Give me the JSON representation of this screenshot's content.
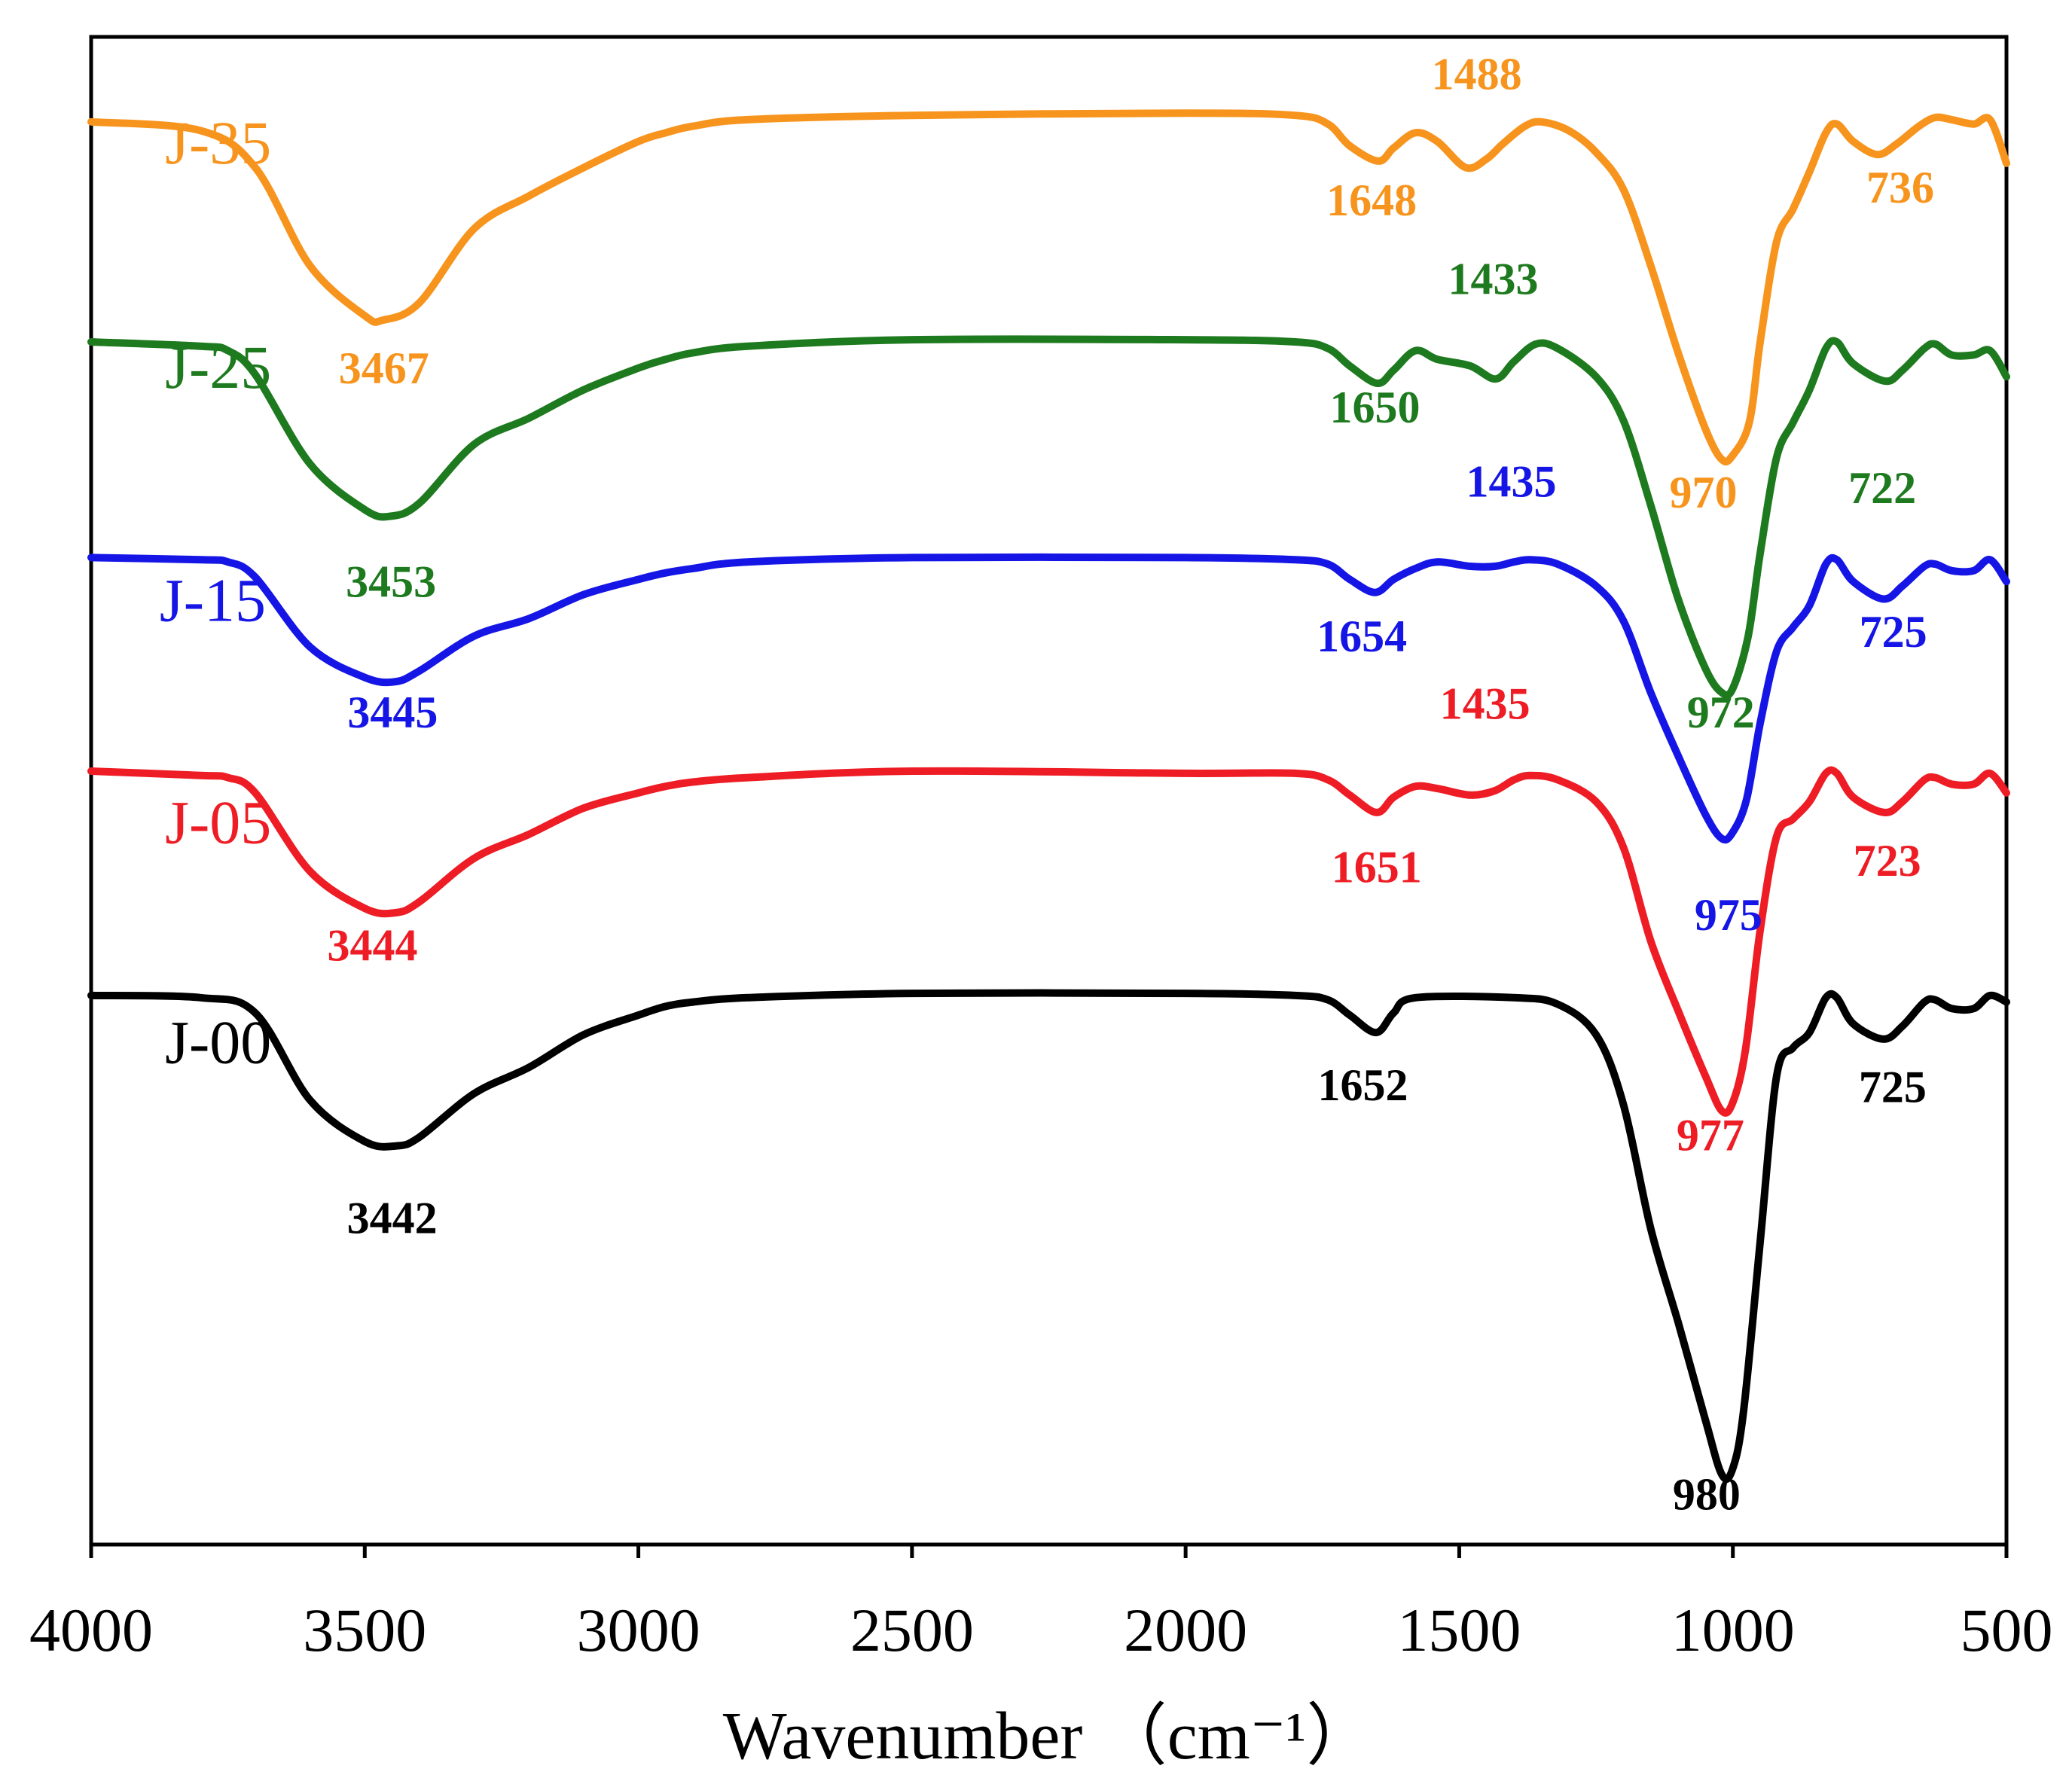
{
  "chart_data": {
    "type": "line",
    "title": "",
    "xlabel": "Wavenumber （cm⁻¹）",
    "ylabel": "",
    "xlim": [
      4000,
      500
    ],
    "x_ticks": [
      {
        "value": 4000,
        "label": "4000"
      },
      {
        "value": 3500,
        "label": "3500"
      },
      {
        "value": 3000,
        "label": "3000"
      },
      {
        "value": 2500,
        "label": "2500"
      },
      {
        "value": 2000,
        "label": "2000"
      },
      {
        "value": 1500,
        "label": "1500"
      },
      {
        "value": 1000,
        "label": "1000"
      },
      {
        "value": 500,
        "label": "500"
      }
    ],
    "y_axis_ticks": "none",
    "grid": false,
    "legend": "series names printed beside each curve on the left",
    "series": [
      {
        "name": "J-35",
        "color": "#f7941d",
        "points": [
          [
            4000,
            4.81
          ],
          [
            3800,
            4.77
          ],
          [
            3700,
            4.6
          ],
          [
            3600,
            4.15
          ],
          [
            3500,
            3.92
          ],
          [
            3467,
            3.9
          ],
          [
            3400,
            3.98
          ],
          [
            3300,
            4.32
          ],
          [
            3200,
            4.47
          ],
          [
            3100,
            4.6
          ],
          [
            3000,
            4.72
          ],
          [
            2950,
            4.76
          ],
          [
            2900,
            4.79
          ],
          [
            2800,
            4.82
          ],
          [
            2500,
            4.84
          ],
          [
            2000,
            4.85
          ],
          [
            1800,
            4.84
          ],
          [
            1740,
            4.8
          ],
          [
            1700,
            4.7
          ],
          [
            1648,
            4.63
          ],
          [
            1620,
            4.69
          ],
          [
            1580,
            4.76
          ],
          [
            1540,
            4.72
          ],
          [
            1488,
            4.6
          ],
          [
            1450,
            4.64
          ],
          [
            1420,
            4.71
          ],
          [
            1380,
            4.79
          ],
          [
            1350,
            4.81
          ],
          [
            1300,
            4.77
          ],
          [
            1250,
            4.67
          ],
          [
            1200,
            4.5
          ],
          [
            1150,
            4.15
          ],
          [
            1100,
            3.75
          ],
          [
            1050,
            3.4
          ],
          [
            1020,
            3.26
          ],
          [
            1000,
            3.28
          ],
          [
            970,
            3.43
          ],
          [
            950,
            3.8
          ],
          [
            920,
            4.26
          ],
          [
            890,
            4.41
          ],
          [
            860,
            4.58
          ],
          [
            830,
            4.76
          ],
          [
            810,
            4.8
          ],
          [
            780,
            4.72
          ],
          [
            736,
            4.66
          ],
          [
            700,
            4.71
          ],
          [
            660,
            4.79
          ],
          [
            630,
            4.83
          ],
          [
            600,
            4.82
          ],
          [
            560,
            4.8
          ],
          [
            530,
            4.82
          ],
          [
            500,
            4.62
          ]
        ]
      },
      {
        "name": "J-25",
        "color": "#1e7a1e",
        "points": [
          [
            4000,
            3.8
          ],
          [
            3800,
            3.78
          ],
          [
            3750,
            3.76
          ],
          [
            3700,
            3.65
          ],
          [
            3600,
            3.24
          ],
          [
            3500,
            3.03
          ],
          [
            3453,
            3.0
          ],
          [
            3400,
            3.06
          ],
          [
            3300,
            3.33
          ],
          [
            3200,
            3.45
          ],
          [
            3100,
            3.58
          ],
          [
            3000,
            3.68
          ],
          [
            2950,
            3.72
          ],
          [
            2900,
            3.75
          ],
          [
            2800,
            3.78
          ],
          [
            2500,
            3.81
          ],
          [
            2000,
            3.81
          ],
          [
            1800,
            3.8
          ],
          [
            1740,
            3.77
          ],
          [
            1700,
            3.69
          ],
          [
            1650,
            3.61
          ],
          [
            1620,
            3.67
          ],
          [
            1580,
            3.76
          ],
          [
            1540,
            3.72
          ],
          [
            1480,
            3.69
          ],
          [
            1433,
            3.63
          ],
          [
            1400,
            3.71
          ],
          [
            1360,
            3.79
          ],
          [
            1320,
            3.77
          ],
          [
            1250,
            3.64
          ],
          [
            1200,
            3.44
          ],
          [
            1150,
            3.05
          ],
          [
            1100,
            2.62
          ],
          [
            1050,
            2.3
          ],
          [
            1020,
            2.19
          ],
          [
            1000,
            2.21
          ],
          [
            972,
            2.45
          ],
          [
            950,
            2.83
          ],
          [
            920,
            3.27
          ],
          [
            890,
            3.43
          ],
          [
            860,
            3.58
          ],
          [
            830,
            3.77
          ],
          [
            810,
            3.8
          ],
          [
            780,
            3.7
          ],
          [
            722,
            3.62
          ],
          [
            690,
            3.67
          ],
          [
            650,
            3.77
          ],
          [
            630,
            3.79
          ],
          [
            600,
            3.74
          ],
          [
            560,
            3.74
          ],
          [
            530,
            3.76
          ],
          [
            500,
            3.64
          ]
        ]
      },
      {
        "name": "J-15",
        "color": "#1515e6",
        "points": [
          [
            4000,
            2.81
          ],
          [
            3800,
            2.8
          ],
          [
            3750,
            2.79
          ],
          [
            3700,
            2.72
          ],
          [
            3600,
            2.4
          ],
          [
            3500,
            2.26
          ],
          [
            3445,
            2.24
          ],
          [
            3400,
            2.29
          ],
          [
            3300,
            2.45
          ],
          [
            3200,
            2.53
          ],
          [
            3100,
            2.64
          ],
          [
            3000,
            2.71
          ],
          [
            2950,
            2.74
          ],
          [
            2900,
            2.76
          ],
          [
            2800,
            2.79
          ],
          [
            2500,
            2.81
          ],
          [
            2000,
            2.81
          ],
          [
            1800,
            2.8
          ],
          [
            1740,
            2.78
          ],
          [
            1700,
            2.71
          ],
          [
            1654,
            2.65
          ],
          [
            1620,
            2.71
          ],
          [
            1580,
            2.76
          ],
          [
            1540,
            2.79
          ],
          [
            1480,
            2.77
          ],
          [
            1435,
            2.77
          ],
          [
            1400,
            2.79
          ],
          [
            1370,
            2.8
          ],
          [
            1320,
            2.78
          ],
          [
            1250,
            2.68
          ],
          [
            1200,
            2.52
          ],
          [
            1150,
            2.19
          ],
          [
            1100,
            1.9
          ],
          [
            1050,
            1.63
          ],
          [
            1020,
            1.52
          ],
          [
            1000,
            1.55
          ],
          [
            975,
            1.7
          ],
          [
            950,
            2.05
          ],
          [
            920,
            2.38
          ],
          [
            890,
            2.49
          ],
          [
            860,
            2.59
          ],
          [
            830,
            2.78
          ],
          [
            810,
            2.8
          ],
          [
            780,
            2.7
          ],
          [
            725,
            2.62
          ],
          [
            690,
            2.68
          ],
          [
            650,
            2.77
          ],
          [
            630,
            2.78
          ],
          [
            600,
            2.75
          ],
          [
            560,
            2.75
          ],
          [
            530,
            2.8
          ],
          [
            500,
            2.7
          ]
        ]
      },
      {
        "name": "J-05",
        "color": "#ee1c24",
        "points": [
          [
            4000,
            1.83
          ],
          [
            3800,
            1.81
          ],
          [
            3750,
            1.8
          ],
          [
            3700,
            1.73
          ],
          [
            3600,
            1.37
          ],
          [
            3500,
            1.2
          ],
          [
            3444,
            1.18
          ],
          [
            3400,
            1.23
          ],
          [
            3300,
            1.43
          ],
          [
            3200,
            1.54
          ],
          [
            3100,
            1.66
          ],
          [
            3000,
            1.73
          ],
          [
            2950,
            1.76
          ],
          [
            2900,
            1.78
          ],
          [
            2800,
            1.8
          ],
          [
            2500,
            1.83
          ],
          [
            2000,
            1.82
          ],
          [
            1800,
            1.82
          ],
          [
            1740,
            1.79
          ],
          [
            1700,
            1.72
          ],
          [
            1651,
            1.64
          ],
          [
            1620,
            1.71
          ],
          [
            1580,
            1.76
          ],
          [
            1540,
            1.75
          ],
          [
            1480,
            1.72
          ],
          [
            1435,
            1.74
          ],
          [
            1400,
            1.79
          ],
          [
            1370,
            1.81
          ],
          [
            1320,
            1.79
          ],
          [
            1250,
            1.69
          ],
          [
            1200,
            1.48
          ],
          [
            1150,
            1.05
          ],
          [
            1100,
            0.73
          ],
          [
            1050,
            0.43
          ],
          [
            1020,
            0.27
          ],
          [
            1000,
            0.31
          ],
          [
            977,
            0.55
          ],
          [
            950,
            1.1
          ],
          [
            920,
            1.53
          ],
          [
            890,
            1.61
          ],
          [
            860,
            1.69
          ],
          [
            830,
            1.82
          ],
          [
            810,
            1.82
          ],
          [
            780,
            1.71
          ],
          [
            723,
            1.64
          ],
          [
            690,
            1.69
          ],
          [
            650,
            1.79
          ],
          [
            630,
            1.8
          ],
          [
            600,
            1.77
          ],
          [
            560,
            1.77
          ],
          [
            530,
            1.82
          ],
          [
            500,
            1.73
          ]
        ]
      },
      {
        "name": "J-00",
        "color": "#000000",
        "points": [
          [
            4000,
            0.8
          ],
          [
            3800,
            0.79
          ],
          [
            3700,
            0.72
          ],
          [
            3600,
            0.32
          ],
          [
            3500,
            0.13
          ],
          [
            3442,
            0.11
          ],
          [
            3400,
            0.15
          ],
          [
            3300,
            0.35
          ],
          [
            3200,
            0.47
          ],
          [
            3100,
            0.62
          ],
          [
            3000,
            0.71
          ],
          [
            2950,
            0.75
          ],
          [
            2900,
            0.77
          ],
          [
            2800,
            0.79
          ],
          [
            2500,
            0.81
          ],
          [
            2000,
            0.81
          ],
          [
            1800,
            0.8
          ],
          [
            1740,
            0.78
          ],
          [
            1700,
            0.71
          ],
          [
            1652,
            0.63
          ],
          [
            1620,
            0.72
          ],
          [
            1580,
            0.79
          ],
          [
            1400,
            0.79
          ],
          [
            1320,
            0.76
          ],
          [
            1250,
            0.62
          ],
          [
            1200,
            0.3
          ],
          [
            1150,
            -0.27
          ],
          [
            1100,
            -0.7
          ],
          [
            1050,
            -1.15
          ],
          [
            1020,
            -1.4
          ],
          [
            1000,
            -1.37
          ],
          [
            980,
            -1.1
          ],
          [
            950,
            -0.33
          ],
          [
            920,
            0.43
          ],
          [
            890,
            0.56
          ],
          [
            860,
            0.63
          ],
          [
            830,
            0.79
          ],
          [
            810,
            0.79
          ],
          [
            780,
            0.67
          ],
          [
            725,
            0.6
          ],
          [
            690,
            0.66
          ],
          [
            650,
            0.77
          ],
          [
            630,
            0.78
          ],
          [
            600,
            0.74
          ],
          [
            560,
            0.74
          ],
          [
            530,
            0.8
          ],
          [
            500,
            0.77
          ]
        ]
      }
    ],
    "series_labels": [
      {
        "text": "J-35",
        "color": "#f7941d",
        "x": 3865,
        "y": 4.62
      },
      {
        "text": "J-25",
        "color": "#1e7a1e",
        "x": 3865,
        "y": 3.59
      },
      {
        "text": "J-15",
        "color": "#1515e6",
        "x": 3875,
        "y": 2.52
      },
      {
        "text": "J-05",
        "color": "#ee1c24",
        "x": 3865,
        "y": 1.5
      },
      {
        "text": "J-00",
        "color": "#000000",
        "x": 3865,
        "y": 0.49
      }
    ],
    "annotations": [
      {
        "text": "1488",
        "color": "#f7941d",
        "x": 1468,
        "y": 4.96
      },
      {
        "text": "1648",
        "color": "#f7941d",
        "x": 1660,
        "y": 4.38
      },
      {
        "text": "736",
        "color": "#f7941d",
        "x": 694,
        "y": 4.44
      },
      {
        "text": "3467",
        "color": "#f7941d",
        "x": 3465,
        "y": 3.61
      },
      {
        "text": "970",
        "color": "#f7941d",
        "x": 1054,
        "y": 3.04
      },
      {
        "text": "1433",
        "color": "#1e7a1e",
        "x": 1438,
        "y": 4.02
      },
      {
        "text": "1650",
        "color": "#1e7a1e",
        "x": 1654,
        "y": 3.43
      },
      {
        "text": "722",
        "color": "#1e7a1e",
        "x": 727,
        "y": 3.06
      },
      {
        "text": "3453",
        "color": "#1e7a1e",
        "x": 3452,
        "y": 2.63
      },
      {
        "text": "1435",
        "color": "#1515e6",
        "x": 1405,
        "y": 3.09
      },
      {
        "text": "1654",
        "color": "#1515e6",
        "x": 1678,
        "y": 2.38
      },
      {
        "text": "972",
        "color": "#1e7a1e",
        "x": 1022,
        "y": 2.03
      },
      {
        "text": "725",
        "color": "#1515e6",
        "x": 707,
        "y": 2.4
      },
      {
        "text": "3445",
        "color": "#1515e6",
        "x": 3449,
        "y": 2.03
      },
      {
        "text": "1435",
        "color": "#ee1c24",
        "x": 1453,
        "y": 2.07
      },
      {
        "text": "975",
        "color": "#1515e6",
        "x": 1008,
        "y": 1.1
      },
      {
        "text": "1651",
        "color": "#ee1c24",
        "x": 1651,
        "y": 1.32
      },
      {
        "text": "723",
        "color": "#ee1c24",
        "x": 718,
        "y": 1.35
      },
      {
        "text": "3444",
        "color": "#ee1c24",
        "x": 3486,
        "y": 0.96
      },
      {
        "text": "1652",
        "color": "#000000",
        "x": 1676,
        "y": 0.32
      },
      {
        "text": "977",
        "color": "#ee1c24",
        "x": 1041,
        "y": 0.09
      },
      {
        "text": "725",
        "color": "#000000",
        "x": 708,
        "y": 0.31
      },
      {
        "text": "3442",
        "color": "#000000",
        "x": 3450,
        "y": -0.29
      },
      {
        "text": "980",
        "color": "#000000",
        "x": 1048,
        "y": -1.56
      }
    ]
  }
}
